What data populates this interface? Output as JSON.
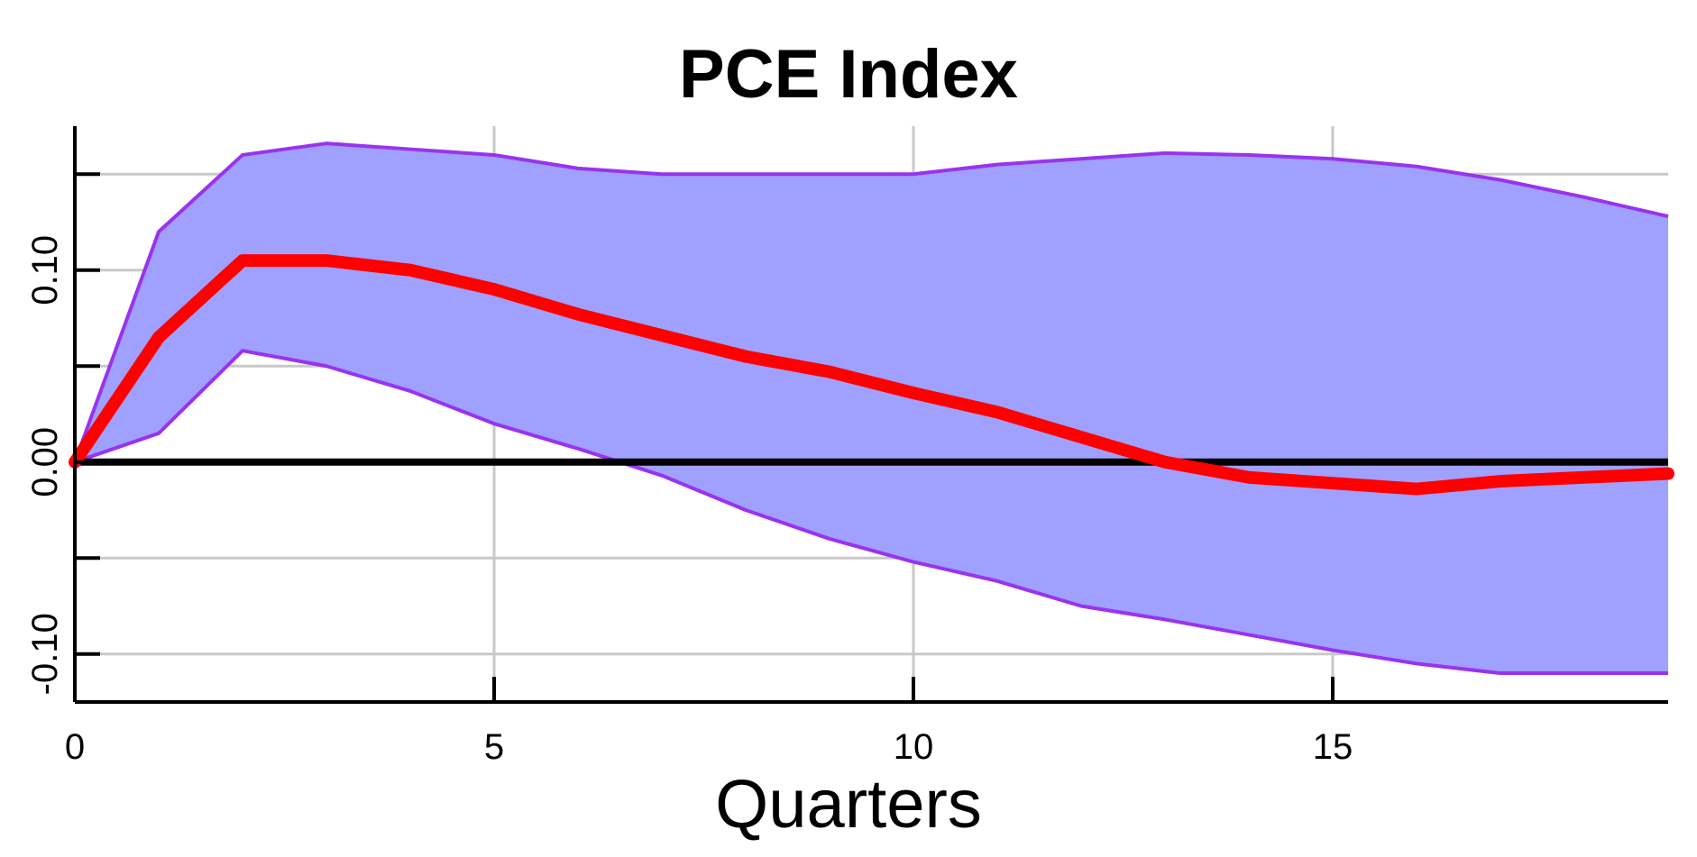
{
  "chart_data": {
    "type": "area",
    "title": "PCE Index",
    "xlabel": "Quarters",
    "ylabel": "",
    "xlim": [
      0,
      19
    ],
    "ylim": [
      -0.125,
      0.175
    ],
    "grid": true,
    "x_ticks": [
      {
        "value": 0,
        "label": "0"
      },
      {
        "value": 5,
        "label": "5"
      },
      {
        "value": 10,
        "label": "10"
      },
      {
        "value": 15,
        "label": "15"
      }
    ],
    "y_ticks": [
      {
        "value": -0.1,
        "label": "-0.10"
      },
      {
        "value": -0.05,
        "label": ""
      },
      {
        "value": 0.0,
        "label": "0.00"
      },
      {
        "value": 0.05,
        "label": ""
      },
      {
        "value": 0.1,
        "label": "0.10"
      },
      {
        "value": 0.15,
        "label": ""
      }
    ],
    "x": [
      0,
      1,
      2,
      3,
      4,
      5,
      6,
      7,
      8,
      9,
      10,
      11,
      12,
      13,
      14,
      15,
      16,
      17,
      18,
      19
    ],
    "series": [
      {
        "role": "response",
        "color": "#ff0000",
        "values": [
          0.0,
          0.065,
          0.105,
          0.105,
          0.1,
          0.09,
          0.077,
          0.066,
          0.055,
          0.047,
          0.036,
          0.026,
          0.013,
          0.0,
          -0.008,
          -0.011,
          -0.014,
          -0.01,
          -0.008,
          -0.006
        ]
      },
      {
        "role": "upper-band",
        "color": "#9933ee",
        "values": [
          0.0,
          0.12,
          0.16,
          0.166,
          0.163,
          0.16,
          0.153,
          0.15,
          0.15,
          0.15,
          0.15,
          0.155,
          0.158,
          0.161,
          0.16,
          0.158,
          0.154,
          0.147,
          0.138,
          0.128
        ]
      },
      {
        "role": "lower-band",
        "color": "#9933ee",
        "values": [
          0.0,
          0.015,
          0.058,
          0.05,
          0.037,
          0.02,
          0.007,
          -0.007,
          -0.025,
          -0.04,
          -0.052,
          -0.062,
          -0.075,
          -0.082,
          -0.09,
          -0.098,
          -0.105,
          -0.11,
          -0.11,
          -0.11
        ]
      }
    ],
    "colors": {
      "band_fill": "#a0a0ff",
      "band_edge": "#9933ee",
      "response": "#ff0000",
      "zero_line": "#000000",
      "grid": "#c8c8c8"
    }
  }
}
